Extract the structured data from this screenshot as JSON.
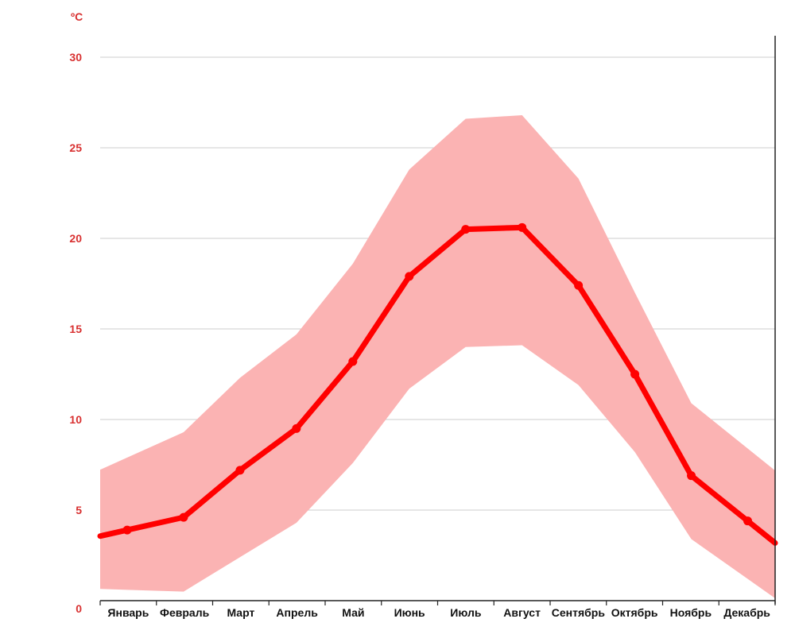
{
  "chart_data": {
    "type": "line",
    "title": "",
    "xlabel": "",
    "ylabel": "ºC",
    "ylim": [
      0,
      30
    ],
    "yticks": [
      "0",
      "5",
      "10",
      "15",
      "20",
      "25",
      "30"
    ],
    "grid": true,
    "categories": [
      "Январь",
      "Февраль",
      "Март",
      "Апрель",
      "Май",
      "Июнь",
      "Июль",
      "Август",
      "Сентябрь",
      "Октябрь",
      "Ноябрь",
      "Декабрь"
    ],
    "series": [
      {
        "values": [
          3.9,
          4.6,
          7.2,
          9.5,
          13.2,
          17.9,
          20.5,
          20.6,
          17.4,
          12.5,
          6.9,
          4.4
        ]
      }
    ],
    "band": {
      "upper": [
        7.9,
        9.3,
        12.3,
        14.7,
        18.6,
        23.8,
        26.6,
        26.8,
        23.3,
        17.0,
        10.9,
        8.4
      ],
      "lower": [
        0.6,
        0.5,
        2.4,
        4.3,
        7.6,
        11.7,
        14.0,
        14.1,
        11.9,
        8.2,
        3.4,
        1.2
      ]
    },
    "colors": {
      "line": "#ff0000",
      "band": "#fbb3b3",
      "axis_label": "#d83030",
      "grid": "#cccccc"
    }
  }
}
